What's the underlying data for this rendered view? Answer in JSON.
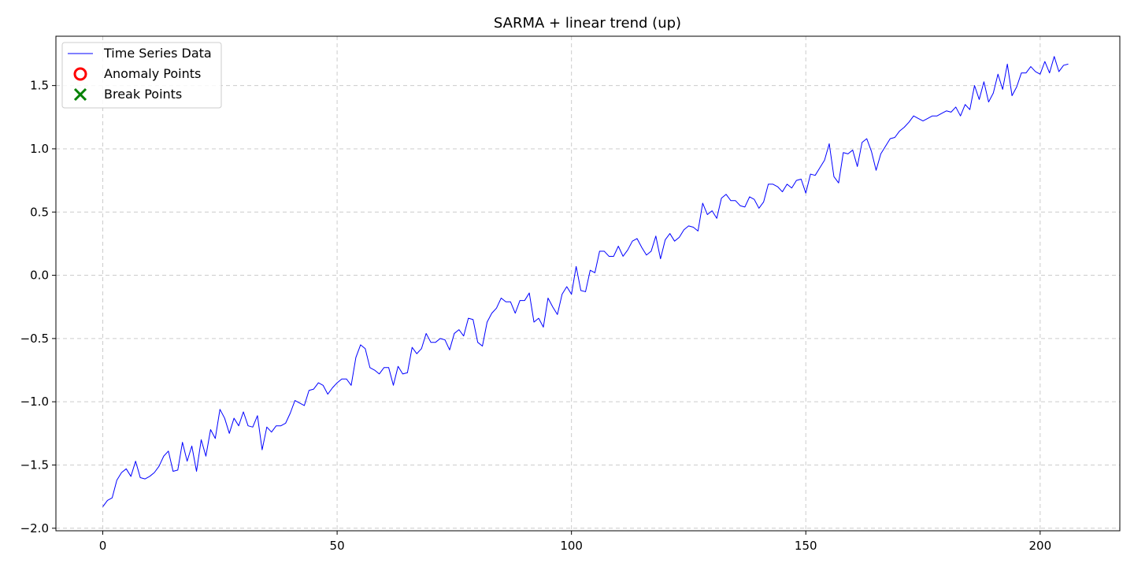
{
  "chart_data": {
    "type": "line",
    "title": "SARMA + linear trend (up)",
    "xlabel": "",
    "ylabel": "",
    "xlim": [
      -10,
      217
    ],
    "ylim": [
      -2.02,
      1.89
    ],
    "x_ticks": [
      0,
      50,
      100,
      150,
      200
    ],
    "y_ticks": [
      -2.0,
      -1.5,
      -1.0,
      -0.5,
      0.0,
      0.5,
      1.0,
      1.5
    ],
    "x_tick_labels": [
      "0",
      "50",
      "100",
      "150",
      "200"
    ],
    "y_tick_labels": [
      "−2.0",
      "−1.5",
      "−1.0",
      "−0.5",
      "0.0",
      "0.5",
      "1.0",
      "1.5"
    ],
    "grid": true,
    "legend_position": "top-left",
    "legend": [
      {
        "label": "Time Series Data",
        "marker": "line",
        "color": "#0000ff"
      },
      {
        "label": "Anomaly Points",
        "marker": "circle",
        "color": "#ff0000"
      },
      {
        "label": "Break Points",
        "marker": "x",
        "color": "#008000"
      }
    ],
    "series": [
      {
        "name": "Time Series Data",
        "color": "#0000ff",
        "x_start": 0,
        "x_step": 1,
        "y": [
          -1.83,
          -1.78,
          -1.76,
          -1.62,
          -1.56,
          -1.53,
          -1.59,
          -1.47,
          -1.6,
          -1.61,
          -1.59,
          -1.56,
          -1.51,
          -1.43,
          -1.39,
          -1.55,
          -1.54,
          -1.32,
          -1.47,
          -1.35,
          -1.55,
          -1.3,
          -1.43,
          -1.22,
          -1.29,
          -1.06,
          -1.13,
          -1.25,
          -1.13,
          -1.19,
          -1.08,
          -1.19,
          -1.2,
          -1.11,
          -1.38,
          -1.2,
          -1.24,
          -1.19,
          -1.19,
          -1.17,
          -1.09,
          -0.99,
          -1.01,
          -1.03,
          -0.91,
          -0.9,
          -0.85,
          -0.87,
          -0.94,
          -0.89,
          -0.85,
          -0.82,
          -0.82,
          -0.87,
          -0.65,
          -0.55,
          -0.58,
          -0.73,
          -0.75,
          -0.78,
          -0.73,
          -0.73,
          -0.87,
          -0.72,
          -0.78,
          -0.77,
          -0.57,
          -0.62,
          -0.58,
          -0.46,
          -0.53,
          -0.53,
          -0.5,
          -0.51,
          -0.59,
          -0.46,
          -0.43,
          -0.48,
          -0.34,
          -0.35,
          -0.53,
          -0.56,
          -0.37,
          -0.3,
          -0.26,
          -0.18,
          -0.21,
          -0.21,
          -0.3,
          -0.2,
          -0.2,
          -0.14,
          -0.37,
          -0.34,
          -0.41,
          -0.18,
          -0.25,
          -0.31,
          -0.15,
          -0.09,
          -0.15,
          0.07,
          -0.12,
          -0.13,
          0.04,
          0.02,
          0.19,
          0.19,
          0.15,
          0.15,
          0.23,
          0.15,
          0.2,
          0.27,
          0.29,
          0.22,
          0.16,
          0.19,
          0.31,
          0.13,
          0.28,
          0.33,
          0.27,
          0.3,
          0.36,
          0.39,
          0.38,
          0.35,
          0.57,
          0.48,
          0.51,
          0.45,
          0.61,
          0.64,
          0.59,
          0.59,
          0.55,
          0.54,
          0.62,
          0.6,
          0.53,
          0.58,
          0.72,
          0.72,
          0.7,
          0.66,
          0.72,
          0.69,
          0.75,
          0.76,
          0.65,
          0.8,
          0.79,
          0.85,
          0.91,
          1.04,
          0.78,
          0.73,
          0.97,
          0.96,
          0.99,
          0.86,
          1.05,
          1.08,
          0.98,
          0.83,
          0.96,
          1.02,
          1.08,
          1.09,
          1.14,
          1.17,
          1.21,
          1.26,
          1.24,
          1.22,
          1.24,
          1.26,
          1.26,
          1.28,
          1.3,
          1.29,
          1.33,
          1.26,
          1.35,
          1.31,
          1.5,
          1.39,
          1.53,
          1.37,
          1.44,
          1.59,
          1.47,
          1.67,
          1.42,
          1.49,
          1.6,
          1.6,
          1.65,
          1.61,
          1.59,
          1.69,
          1.6,
          1.73,
          1.61,
          1.66,
          1.67
        ]
      }
    ],
    "anomaly_points": [],
    "break_points": []
  }
}
